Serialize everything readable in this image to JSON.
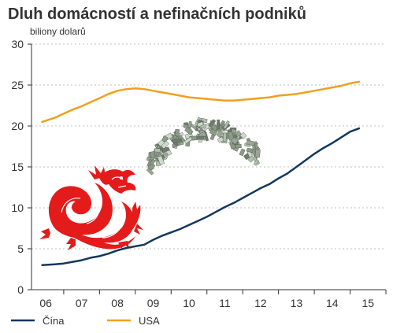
{
  "chart_data": {
    "type": "line",
    "title": "Dluh domácností a nefinačních podniků",
    "ylabel": "biliony dolarů",
    "xlabel": "",
    "ylim": [
      0,
      30
    ],
    "yticks": [
      0,
      5,
      10,
      15,
      20,
      25,
      30
    ],
    "xlim": [
      2005.6,
      2015.5
    ],
    "xticks": [
      {
        "value": 2006,
        "label": "06"
      },
      {
        "value": 2007,
        "label": "07"
      },
      {
        "value": 2008,
        "label": "08"
      },
      {
        "value": 2009,
        "label": "09"
      },
      {
        "value": 2010,
        "label": "10"
      },
      {
        "value": 2011,
        "label": "11"
      },
      {
        "value": 2012,
        "label": "12"
      },
      {
        "value": 2013,
        "label": "13"
      },
      {
        "value": 2014,
        "label": "14"
      },
      {
        "value": 2015,
        "label": "15"
      }
    ],
    "grid": "horizontal",
    "legend": "bottom-left",
    "series": [
      {
        "name": "Čína",
        "color": "#14375e",
        "x": [
          2005.9,
          2006.25,
          2006.5,
          2006.75,
          2007.0,
          2007.25,
          2007.5,
          2007.75,
          2008.0,
          2008.25,
          2008.5,
          2008.75,
          2009.0,
          2009.25,
          2009.5,
          2009.75,
          2010.0,
          2010.25,
          2010.5,
          2010.75,
          2011.0,
          2011.25,
          2011.5,
          2011.75,
          2012.0,
          2012.25,
          2012.5,
          2012.75,
          2013.0,
          2013.25,
          2013.5,
          2013.75,
          2014.0,
          2014.25,
          2014.5,
          2014.75
        ],
        "values": [
          3.0,
          3.1,
          3.2,
          3.4,
          3.6,
          3.9,
          4.1,
          4.4,
          4.8,
          5.1,
          5.3,
          5.5,
          6.1,
          6.6,
          7.0,
          7.4,
          7.9,
          8.4,
          8.9,
          9.5,
          10.1,
          10.6,
          11.2,
          11.8,
          12.4,
          12.9,
          13.6,
          14.2,
          15.0,
          15.8,
          16.6,
          17.3,
          17.9,
          18.6,
          19.3,
          19.7
        ]
      },
      {
        "name": "USA",
        "color": "#f0a01e",
        "x": [
          2005.9,
          2006.25,
          2006.5,
          2006.75,
          2007.0,
          2007.25,
          2007.5,
          2007.75,
          2008.0,
          2008.25,
          2008.5,
          2008.75,
          2009.0,
          2009.25,
          2009.5,
          2009.75,
          2010.0,
          2010.25,
          2010.5,
          2010.75,
          2011.0,
          2011.25,
          2011.5,
          2011.75,
          2012.0,
          2012.25,
          2012.5,
          2012.75,
          2013.0,
          2013.25,
          2013.5,
          2013.75,
          2014.0,
          2014.25,
          2014.5,
          2014.75
        ],
        "values": [
          20.5,
          21.0,
          21.5,
          22.0,
          22.4,
          22.9,
          23.4,
          23.9,
          24.3,
          24.5,
          24.6,
          24.5,
          24.3,
          24.1,
          23.9,
          23.7,
          23.5,
          23.4,
          23.3,
          23.2,
          23.1,
          23.1,
          23.2,
          23.3,
          23.4,
          23.5,
          23.7,
          23.8,
          23.9,
          24.1,
          24.3,
          24.5,
          24.7,
          24.9,
          25.2,
          25.4
        ]
      }
    ]
  },
  "decor": {
    "dragon_icon": "red-chinese-dragon-icon",
    "dragon_color": "#e31b1b",
    "money_icon": "dollar-banknotes-pile-icon"
  }
}
